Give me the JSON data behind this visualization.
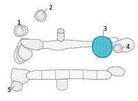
{
  "background_color": "#ffffff",
  "outline_color": "#888888",
  "highlight_color": "#50bfce",
  "highlight_edge": "#2090a0",
  "line_color": "#888888",
  "label_color": "#333333",
  "figsize": [
    2.0,
    1.47
  ],
  "dpi": 100,
  "part3_fill": "#55c5d5",
  "part3_edge": "#1a8a9a"
}
